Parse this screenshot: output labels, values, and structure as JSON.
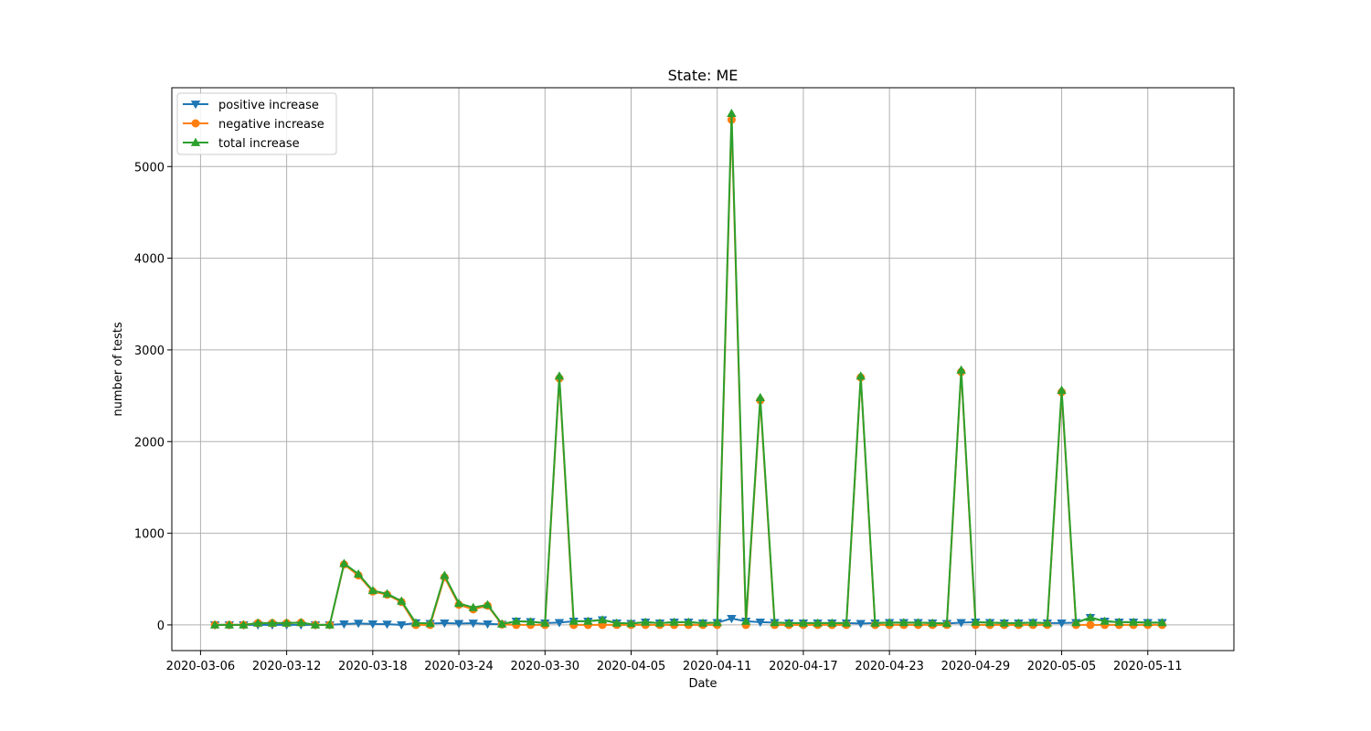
{
  "chart_data": {
    "type": "line",
    "title": "State: ME",
    "xlabel": "Date",
    "ylabel": "number of tests",
    "ylim": [
      -280,
      5860
    ],
    "xlim": [
      "2020-03-04",
      "2020-05-17"
    ],
    "grid": true,
    "legend_position": "top-left",
    "x_ticks": [
      "2020-03-06",
      "2020-03-12",
      "2020-03-18",
      "2020-03-24",
      "2020-03-30",
      "2020-04-05",
      "2020-04-11",
      "2020-04-17",
      "2020-04-23",
      "2020-04-29",
      "2020-05-05",
      "2020-05-11"
    ],
    "y_ticks": [
      0,
      1000,
      2000,
      3000,
      4000,
      5000
    ],
    "x_start": "2020-03-07",
    "series": [
      {
        "name": "positive increase",
        "color": "#1f77b4",
        "marker": "triangle-down",
        "values": [
          0,
          0,
          0,
          0,
          0,
          0,
          0,
          0,
          0,
          10,
          17,
          10,
          8,
          0,
          22,
          15,
          20,
          15,
          19,
          10,
          6,
          40,
          35,
          20,
          25,
          40,
          40,
          55,
          20,
          15,
          30,
          20,
          30,
          30,
          20,
          25,
          70,
          40,
          30,
          25,
          20,
          20,
          20,
          20,
          20,
          15,
          20,
          25,
          25,
          25,
          20,
          15,
          25,
          30,
          25,
          20,
          20,
          25,
          20,
          20,
          25,
          80,
          40,
          30,
          30,
          25,
          25
        ]
      },
      {
        "name": "negative increase",
        "color": "#ff7f0e",
        "marker": "circle",
        "values": [
          0,
          0,
          0,
          20,
          20,
          20,
          25,
          0,
          0,
          660,
          540,
          365,
          330,
          250,
          0,
          0,
          520,
          220,
          170,
          210,
          5,
          0,
          0,
          0,
          2690,
          0,
          0,
          0,
          0,
          0,
          0,
          0,
          0,
          0,
          0,
          0,
          5510,
          0,
          2450,
          0,
          0,
          0,
          0,
          0,
          0,
          2700,
          0,
          0,
          0,
          0,
          0,
          0,
          2760,
          0,
          0,
          0,
          0,
          0,
          0,
          2540,
          0,
          0,
          0,
          0,
          0,
          0,
          0
        ]
      },
      {
        "name": "total increase",
        "color": "#2ca02c",
        "marker": "triangle-up",
        "values": [
          0,
          0,
          0,
          20,
          20,
          20,
          25,
          0,
          0,
          670,
          555,
          375,
          340,
          260,
          22,
          15,
          540,
          235,
          190,
          220,
          11,
          40,
          35,
          20,
          2715,
          40,
          40,
          55,
          20,
          15,
          30,
          20,
          30,
          30,
          20,
          25,
          5580,
          40,
          2480,
          25,
          20,
          20,
          20,
          20,
          20,
          2715,
          20,
          25,
          25,
          25,
          20,
          15,
          2780,
          30,
          25,
          20,
          20,
          25,
          20,
          2560,
          25,
          80,
          40,
          30,
          30,
          25,
          25
        ]
      }
    ]
  }
}
